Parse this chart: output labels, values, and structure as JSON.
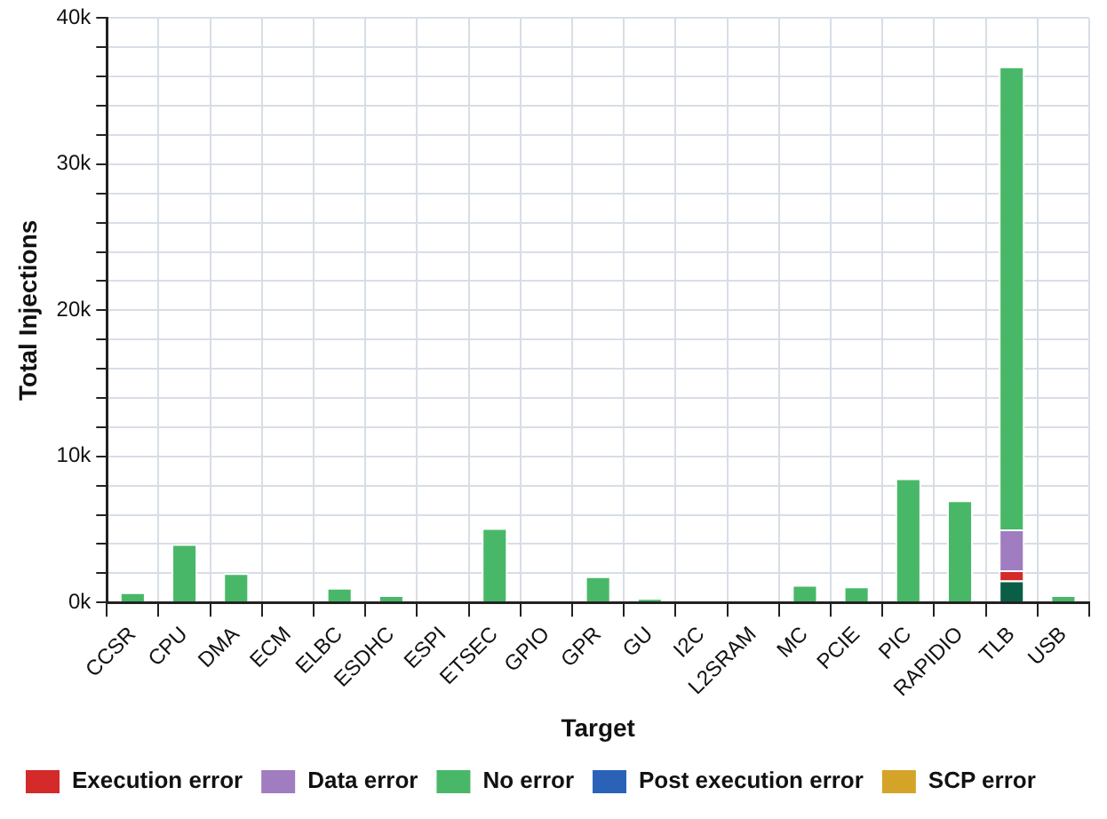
{
  "chart_data": {
    "type": "bar",
    "stacked": true,
    "xlabel": "Target",
    "ylabel": "Total Injections",
    "categories": [
      "CCSR",
      "CPU",
      "DMA",
      "ECM",
      "ELBC",
      "ESDHC",
      "ESPI",
      "ETSEC",
      "GPIO",
      "GPR",
      "GU",
      "I2C",
      "L2SRAM",
      "MC",
      "PCIE",
      "PIC",
      "RAPIDIO",
      "TLB",
      "USB"
    ],
    "series": [
      {
        "color": "#0b5e46",
        "values": [
          0,
          0,
          0,
          0,
          0,
          0,
          0,
          0,
          0,
          0,
          0,
          0,
          0,
          0,
          0,
          0,
          0,
          1500,
          0
        ]
      },
      {
        "name": "Execution error",
        "color": "#d42a2a",
        "values": [
          0,
          0,
          0,
          0,
          0,
          0,
          0,
          0,
          0,
          0,
          0,
          0,
          0,
          0,
          0,
          0,
          0,
          700,
          0
        ]
      },
      {
        "name": "Data error",
        "color": "#a07cc0",
        "values": [
          0,
          0,
          0,
          0,
          0,
          0,
          0,
          0,
          0,
          0,
          0,
          0,
          0,
          0,
          0,
          0,
          0,
          2800,
          0
        ]
      },
      {
        "name": "No error",
        "color": "#48b868",
        "values": [
          700,
          4000,
          2000,
          0,
          1000,
          500,
          0,
          5100,
          0,
          1800,
          300,
          0,
          0,
          1200,
          1100,
          8500,
          7000,
          31700,
          500
        ]
      },
      {
        "name": "Post execution error",
        "color": "#2a62b8",
        "values": [
          0,
          0,
          0,
          0,
          0,
          0,
          0,
          0,
          0,
          0,
          0,
          0,
          0,
          0,
          0,
          0,
          0,
          0,
          0
        ]
      },
      {
        "name": "SCP error",
        "color": "#d4a428",
        "values": [
          0,
          0,
          0,
          0,
          0,
          0,
          0,
          0,
          0,
          0,
          0,
          0,
          0,
          0,
          0,
          0,
          0,
          0,
          0
        ]
      }
    ],
    "ylim": [
      0,
      40000
    ],
    "yticks": [
      {
        "value": 0,
        "label": "0k"
      },
      {
        "value": 2000,
        "label": null
      },
      {
        "value": 4000,
        "label": null
      },
      {
        "value": 6000,
        "label": null
      },
      {
        "value": 8000,
        "label": null
      },
      {
        "value": 10000,
        "label": "10k"
      },
      {
        "value": 12000,
        "label": null
      },
      {
        "value": 14000,
        "label": null
      },
      {
        "value": 16000,
        "label": null
      },
      {
        "value": 18000,
        "label": null
      },
      {
        "value": 20000,
        "label": "20k"
      },
      {
        "value": 22000,
        "label": null
      },
      {
        "value": 24000,
        "label": null
      },
      {
        "value": 26000,
        "label": null
      },
      {
        "value": 28000,
        "label": null
      },
      {
        "value": 30000,
        "label": "30k"
      },
      {
        "value": 32000,
        "label": null
      },
      {
        "value": 34000,
        "label": null
      },
      {
        "value": 36000,
        "label": null
      },
      {
        "value": 38000,
        "label": null
      },
      {
        "value": 40000,
        "label": "40k"
      }
    ],
    "grid": true,
    "legend": "bottom"
  }
}
